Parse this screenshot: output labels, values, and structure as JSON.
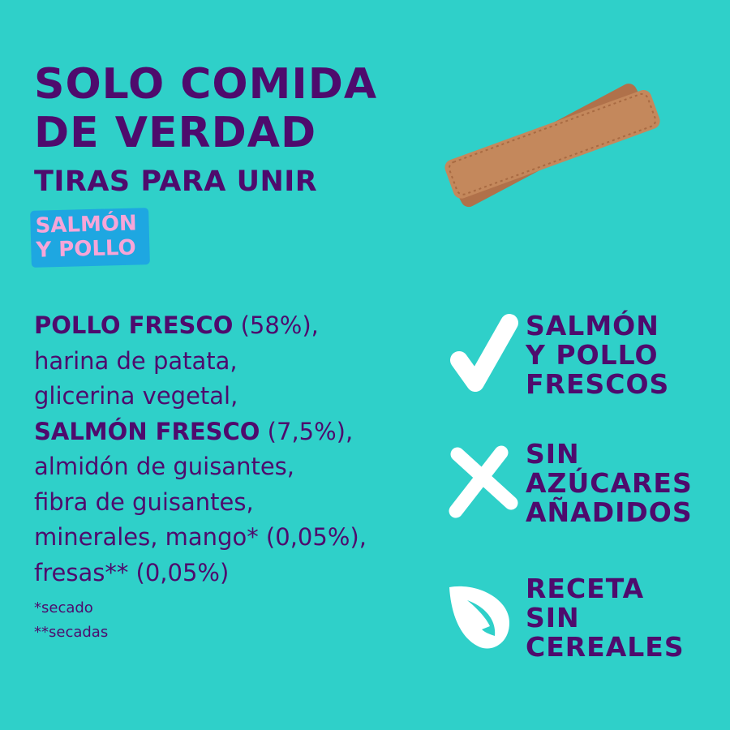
{
  "title": {
    "line1": "SOLO COMIDA",
    "line2": "DE VERDAD"
  },
  "subtitle": "TIRAS PARA UNIR",
  "badge": {
    "line1": "SALMÓN",
    "line2": "Y POLLO"
  },
  "ingredients": [
    {
      "bold": "POLLO FRESCO",
      "text": " (58%),"
    },
    {
      "bold": "",
      "text": "harina de patata,"
    },
    {
      "bold": "",
      "text": "glicerina vegetal,"
    },
    {
      "bold": "SALMÓN FRESCO",
      "text": " (7,5%),"
    },
    {
      "bold": "",
      "text": "almidón de guisantes,"
    },
    {
      "bold": "",
      "text": "fibra de guisantes,"
    },
    {
      "bold": "",
      "text": "minerales, mango* (0,05%),"
    },
    {
      "bold": "",
      "text": "fresas** (0,05%)"
    }
  ],
  "notes": [
    "*secado",
    "**secadas"
  ],
  "features": [
    {
      "icon": "check-icon",
      "lines": [
        "SALMÓN",
        "Y POLLO",
        "FRESCOS"
      ]
    },
    {
      "icon": "cross-icon",
      "lines": [
        "SIN",
        "AZÚCARES",
        "AÑADIDOS"
      ]
    },
    {
      "icon": "leaf-icon",
      "lines": [
        "RECETA",
        "SIN",
        "CEREALES"
      ]
    }
  ],
  "colors": {
    "background": "#2fd0c9",
    "text": "#4e0b6d",
    "badge": "#1ea7e1",
    "badge_text": "#f7a5d8",
    "icon": "#ffffff"
  }
}
